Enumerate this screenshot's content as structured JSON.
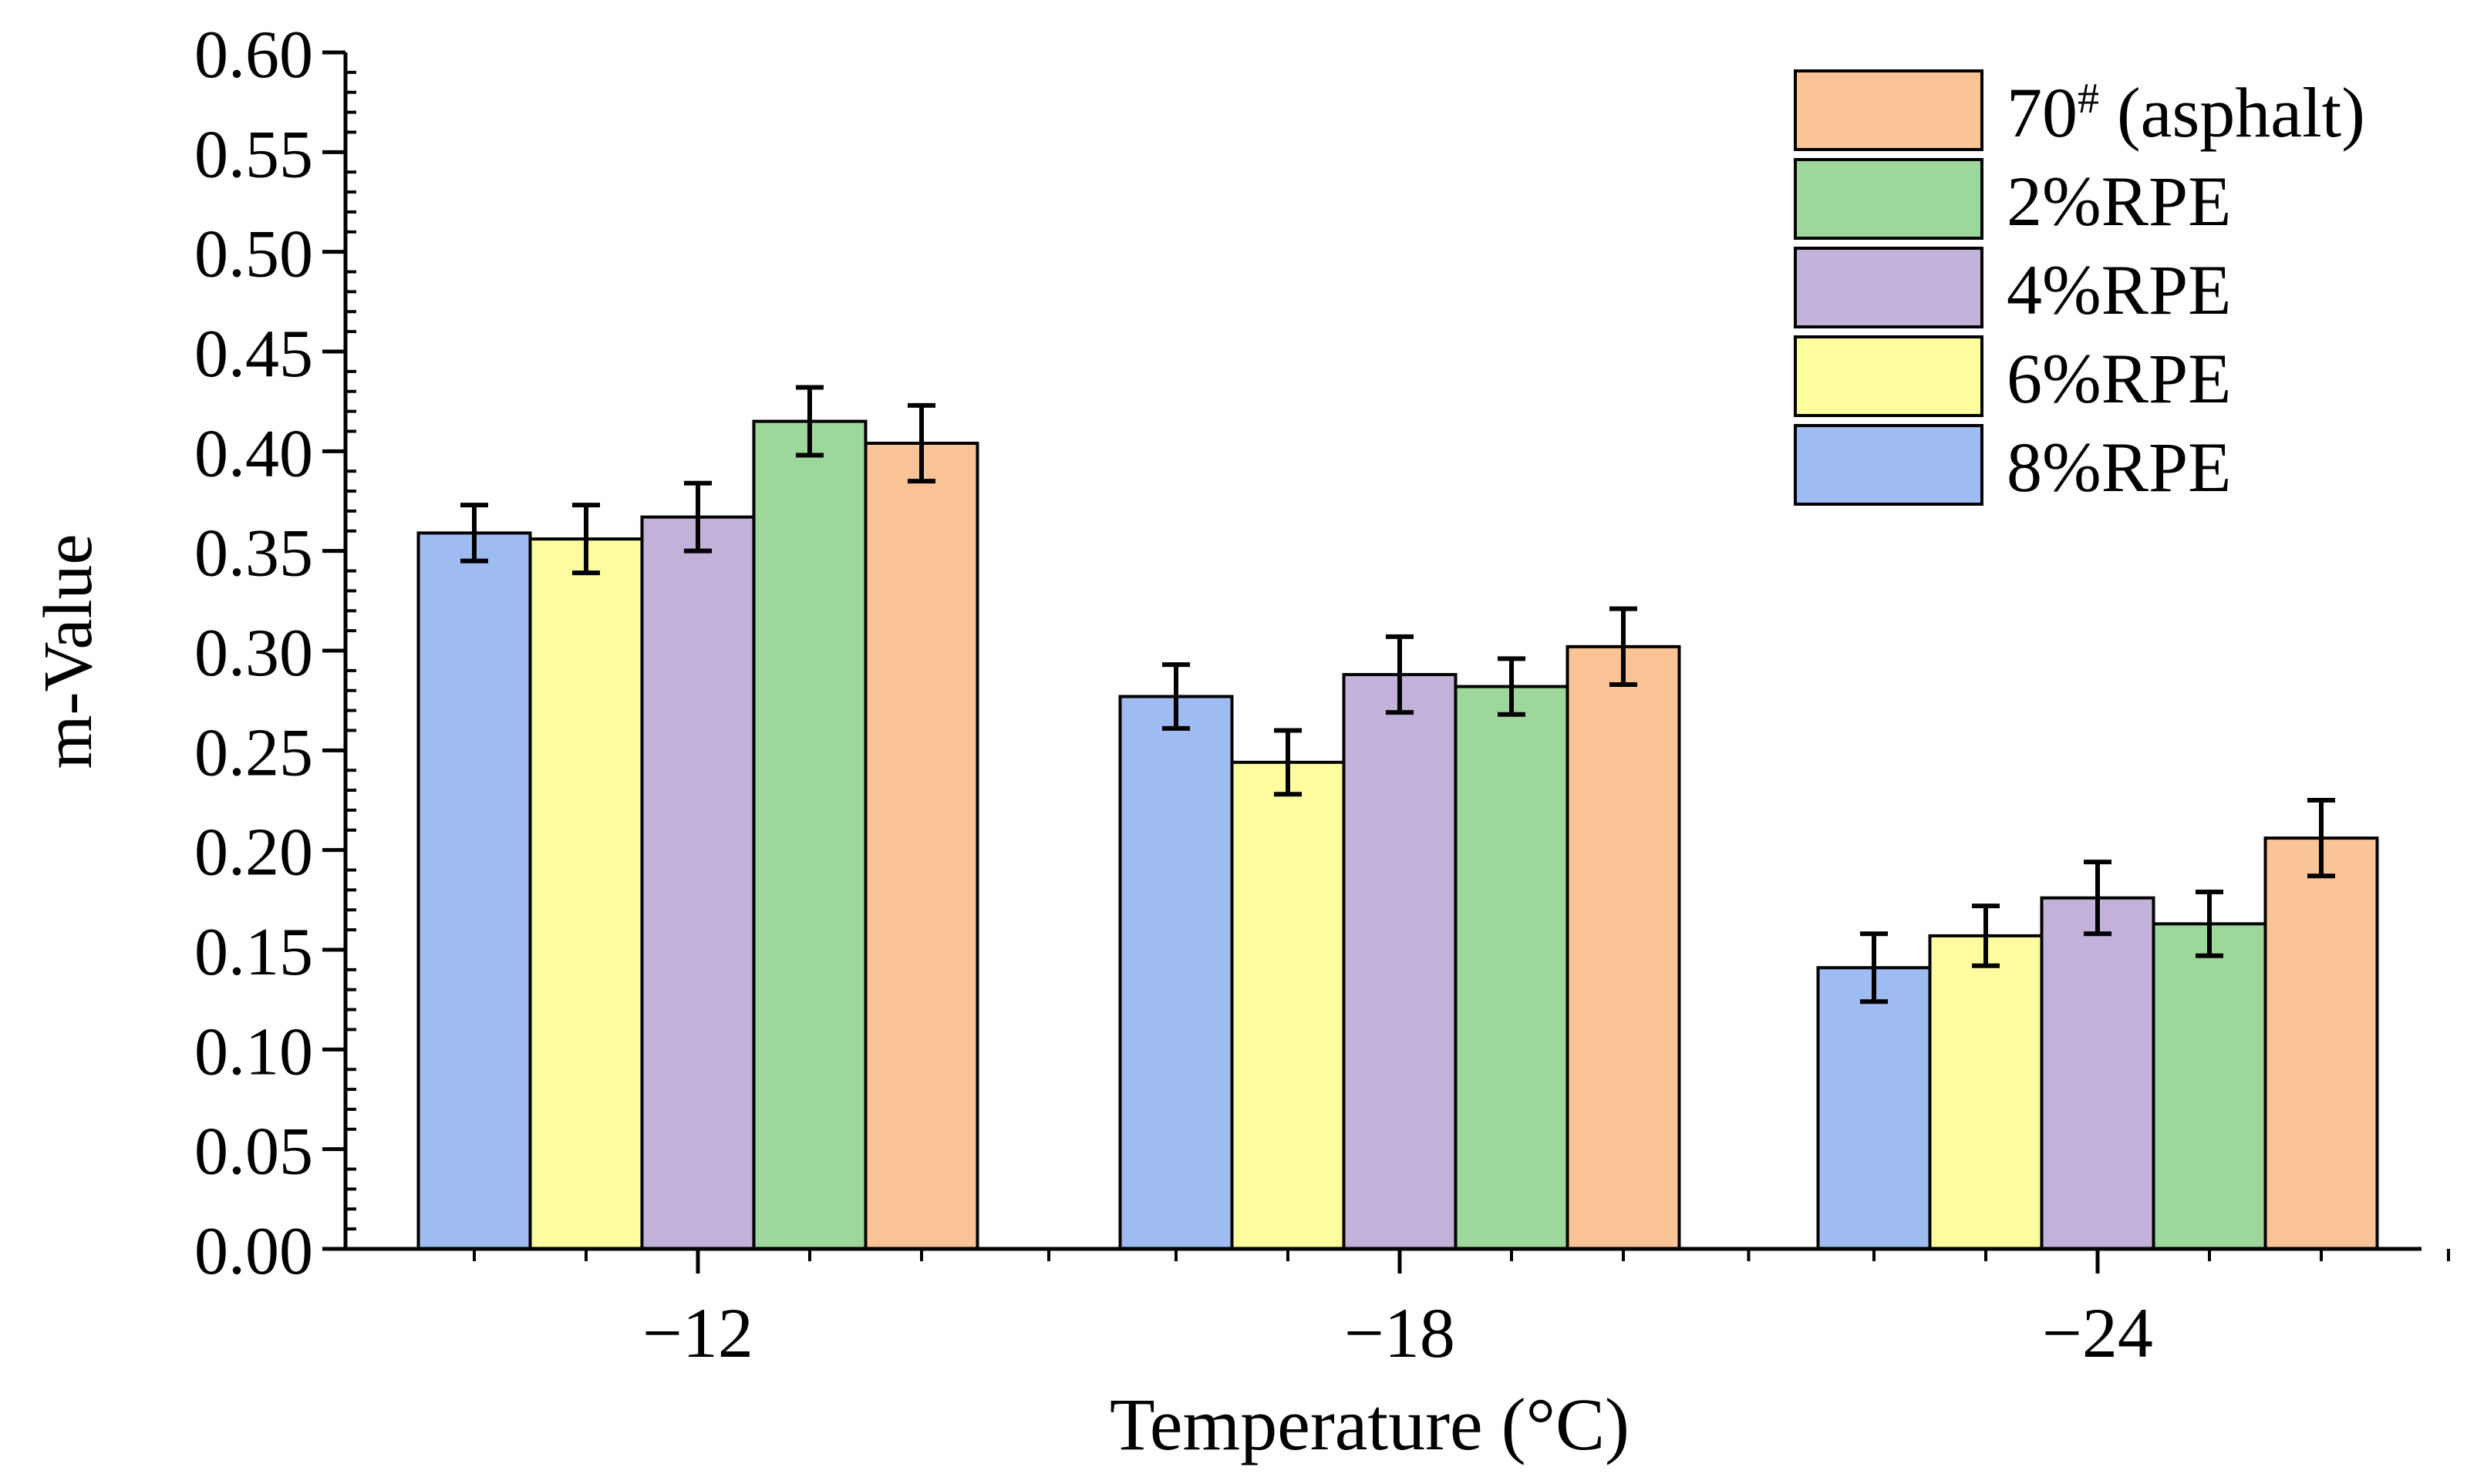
{
  "chart_data": {
    "type": "bar",
    "title": "",
    "xlabel": "Temperature (°C)",
    "ylabel": "m-Value",
    "categories": [
      "−12",
      "−18",
      "−24"
    ],
    "ylim": [
      0,
      0.6
    ],
    "yticks": [
      "0.00",
      "0.05",
      "0.10",
      "0.15",
      "0.20",
      "0.25",
      "0.30",
      "0.35",
      "0.40",
      "0.45",
      "0.50",
      "0.55",
      "0.60"
    ],
    "series": [
      {
        "name": "8%RPE",
        "color": "#9EBBF2",
        "values": [
          0.359,
          0.277,
          0.141
        ],
        "errors": [
          0.014,
          0.016,
          0.017
        ]
      },
      {
        "name": "6%RPE",
        "color": "#FDFDA0",
        "values": [
          0.356,
          0.244,
          0.157
        ],
        "errors": [
          0.017,
          0.016,
          0.015
        ]
      },
      {
        "name": "4%RPE",
        "color": "#C2B1D9",
        "values": [
          0.367,
          0.288,
          0.176
        ],
        "errors": [
          0.017,
          0.019,
          0.018
        ]
      },
      {
        "name": "2%RPE",
        "color": "#9DD79C",
        "values": [
          0.415,
          0.282,
          0.163
        ],
        "errors": [
          0.017,
          0.014,
          0.016
        ]
      },
      {
        "name": "70# (asphalt)",
        "color": "#FBC496",
        "values": [
          0.404,
          0.302,
          0.206
        ],
        "errors": [
          0.019,
          0.019,
          0.019
        ]
      }
    ],
    "legend": {
      "placement": "top-right",
      "order": [
        "70# (asphalt)",
        "2%RPE",
        "4%RPE",
        "6%RPE",
        "8%RPE"
      ],
      "labels": [
        {
          "main": "70",
          "sup": "#",
          "rest": " (asphalt)",
          "color": "#FBC496"
        },
        {
          "main": "2%RPE",
          "sup": "",
          "rest": "",
          "color": "#9DD79C"
        },
        {
          "main": "4%RPE",
          "sup": "",
          "rest": "",
          "color": "#C2B1D9"
        },
        {
          "main": "6%RPE",
          "sup": "",
          "rest": "",
          "color": "#FDFDA0"
        },
        {
          "main": "8%RPE",
          "sup": "",
          "rest": "",
          "color": "#9EBBF2"
        }
      ]
    },
    "grid": false
  }
}
